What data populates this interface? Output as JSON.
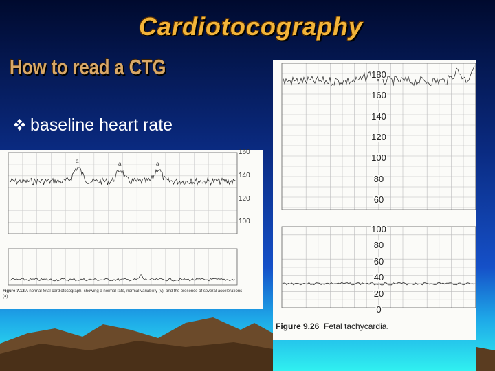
{
  "slide": {
    "title": "Cardiotocography",
    "subtitle": "How to read a CTG",
    "bullets": [
      "baseline heart rate"
    ]
  },
  "figures": [
    {
      "axis_labels": [
        160,
        140,
        120,
        100
      ],
      "annotations": [
        "a",
        "a",
        "a",
        "v"
      ],
      "caption_label": "Figure 7.12",
      "caption_text": "A normal fetal cardiotocograph, showing a normal rate, normal variability (v), and the presence of several accelerations (a)."
    },
    {
      "upper_axis_labels": [
        180,
        160,
        140,
        120,
        100,
        80,
        60
      ],
      "lower_axis_labels": [
        100,
        80,
        60,
        40,
        20,
        0
      ],
      "caption_label": "Figure 9.26",
      "caption_text": "Fetal tachycardia."
    }
  ]
}
